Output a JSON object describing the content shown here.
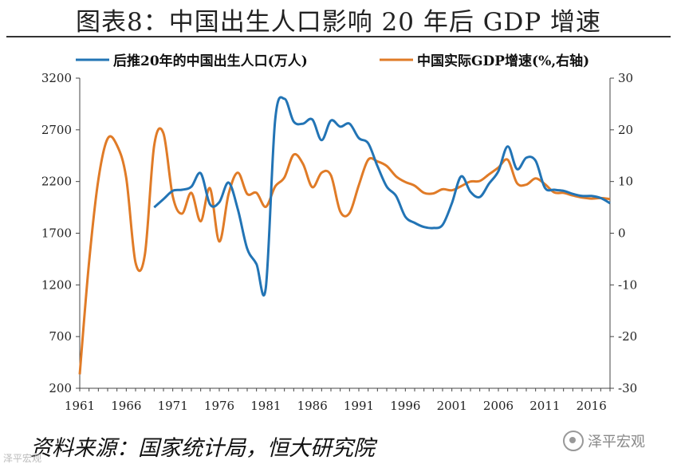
{
  "figure": {
    "title": "图表8：中国出生人口影响 20 年后 GDP 增速",
    "source": "资料来源：国家统计局，恒大研究院",
    "watermark": "泽平宏观",
    "watermark_corner": "泽平宏观"
  },
  "colors": {
    "births": "#2274b5",
    "gdp": "#e07b27",
    "axis": "#444444"
  },
  "chart_data": {
    "type": "line",
    "title": "",
    "x": [
      1961,
      1962,
      1963,
      1964,
      1965,
      1966,
      1967,
      1968,
      1969,
      1970,
      1971,
      1972,
      1973,
      1974,
      1975,
      1976,
      1977,
      1978,
      1979,
      1980,
      1981,
      1982,
      1983,
      1984,
      1985,
      1986,
      1987,
      1988,
      1989,
      1990,
      1991,
      1992,
      1993,
      1994,
      1995,
      1996,
      1997,
      1998,
      1999,
      2000,
      2001,
      2002,
      2003,
      2004,
      2005,
      2006,
      2007,
      2008,
      2009,
      2010,
      2011,
      2012,
      2013,
      2014,
      2015,
      2016,
      2017,
      2018
    ],
    "xticks": [
      "1961",
      "1966",
      "1971",
      "1976",
      "1981",
      "1986",
      "1991",
      "1996",
      "2001",
      "2006",
      "2011",
      "2016"
    ],
    "y_left": {
      "ylim": [
        200,
        3200
      ],
      "ticks": [
        "3200",
        "2700",
        "2200",
        "1700",
        "1200",
        "700",
        "200"
      ]
    },
    "y_right": {
      "ylim": [
        -30,
        30
      ],
      "ticks": [
        "30",
        "20",
        "10",
        "0",
        "-10",
        "-20",
        "-30"
      ]
    },
    "series": [
      {
        "name": "后推20年的中国出生人口(万人)",
        "axis": "left",
        "values": [
          null,
          null,
          null,
          null,
          null,
          null,
          null,
          null,
          1950,
          2030,
          2110,
          2120,
          2150,
          2280,
          1980,
          2000,
          2190,
          1930,
          1550,
          1400,
          1170,
          2790,
          3000,
          2780,
          2760,
          2800,
          2600,
          2790,
          2730,
          2760,
          2620,
          2570,
          2350,
          2150,
          2060,
          1860,
          1800,
          1760,
          1750,
          1780,
          1990,
          2250,
          2100,
          2050,
          2180,
          2300,
          2540,
          2320,
          2430,
          2400,
          2140,
          2120,
          2110,
          2080,
          2060,
          2060,
          2040,
          1990
        ]
      },
      {
        "name": "中国实际GDP增速(%,右轴)",
        "axis": "right",
        "values": [
          -27.3,
          -5.6,
          10.3,
          18.3,
          17.0,
          10.7,
          -5.7,
          -4.1,
          16.9,
          19.3,
          7.1,
          3.8,
          7.8,
          2.3,
          8.7,
          -1.6,
          7.6,
          11.7,
          7.6,
          7.8,
          5.1,
          9.0,
          10.8,
          15.2,
          13.4,
          8.9,
          11.7,
          11.2,
          4.2,
          3.9,
          9.3,
          14.2,
          13.9,
          13.0,
          11.0,
          9.9,
          9.2,
          7.8,
          7.7,
          8.5,
          8.3,
          9.1,
          10.0,
          10.1,
          11.4,
          12.7,
          14.2,
          9.7,
          9.4,
          10.6,
          9.5,
          7.9,
          7.8,
          7.3,
          6.9,
          6.7,
          6.8,
          6.6
        ]
      }
    ]
  }
}
